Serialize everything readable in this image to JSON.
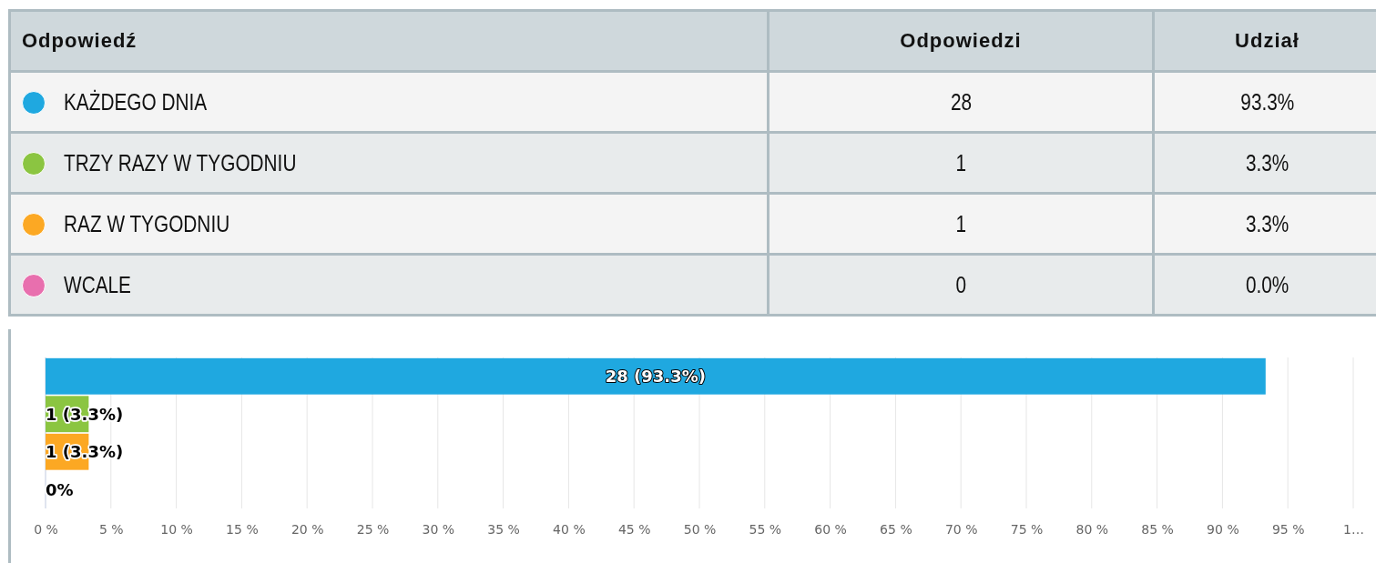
{
  "chart_data": {
    "type": "bar",
    "orientation": "horizontal",
    "categories": [
      null,
      null,
      null,
      null
    ],
    "values": [
      93.3,
      3.3,
      3.3,
      0
    ],
    "colors": [
      "#1fa8e0",
      "#8bc541",
      "#fca823",
      "#e86fae"
    ],
    "value_labels": [
      "28 (93.3%)",
      "1 (3.3%)",
      "1 (3.3%)",
      "0%"
    ],
    "xlim": [
      0,
      100
    ],
    "xticks": [
      {
        "value": 0,
        "label": "0 %"
      },
      {
        "value": 5,
        "label": "5 %"
      },
      {
        "value": 10,
        "label": "10 %"
      },
      {
        "value": 15,
        "label": "15 %"
      },
      {
        "value": 20,
        "label": "20 %"
      },
      {
        "value": 25,
        "label": "25 %"
      },
      {
        "value": 30,
        "label": "30 %"
      },
      {
        "value": 35,
        "label": "35 %"
      },
      {
        "value": 40,
        "label": "40 %"
      },
      {
        "value": 45,
        "label": "45 %"
      },
      {
        "value": 50,
        "label": "50 %"
      },
      {
        "value": 55,
        "label": "55 %"
      },
      {
        "value": 60,
        "label": "60 %"
      },
      {
        "value": 65,
        "label": "65 %"
      },
      {
        "value": 70,
        "label": "70 %"
      },
      {
        "value": 75,
        "label": "75 %"
      },
      {
        "value": 80,
        "label": "80 %"
      },
      {
        "value": 85,
        "label": "85 %"
      },
      {
        "value": 90,
        "label": "90 %"
      },
      {
        "value": 95,
        "label": "95 %"
      },
      {
        "value": 100,
        "label": "1…"
      }
    ],
    "grid": "x",
    "tick_labels": "x",
    "annotations": [
      "Odpowiedź",
      "Odpowiedzi",
      "Udział",
      "KAŻDEGO DNIA",
      "28",
      "93.3%",
      "TRZY RAZY W TYGODNIU",
      "1",
      "3.3%",
      "RAZ W TYGODNIU",
      "1",
      "3.3%",
      "WCALE",
      "0",
      "0.0%"
    ]
  }
}
